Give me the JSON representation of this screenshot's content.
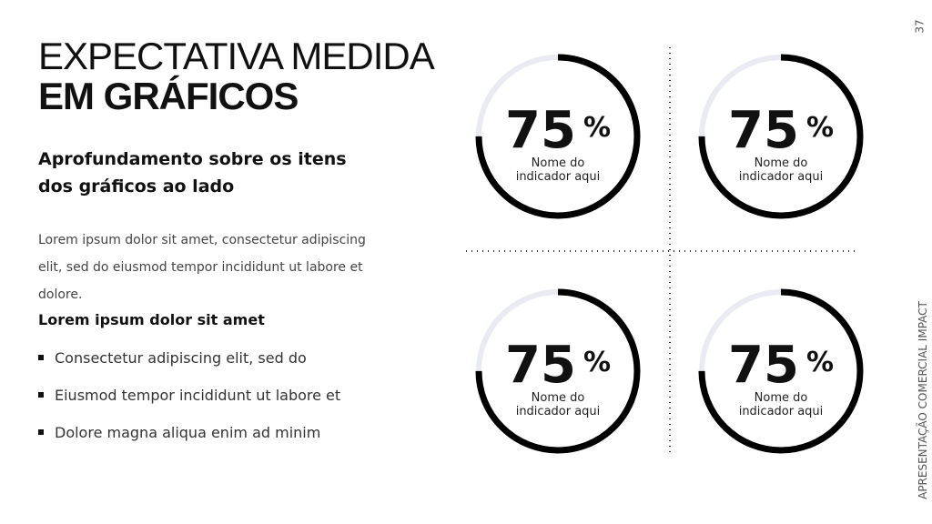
{
  "header": {
    "title_light": "EXPECTATIVA MEDIDA",
    "title_bold": "EM GRÁFICOS",
    "subtitle": "Aprofundamento sobre os itens dos gráficos ao lado"
  },
  "body": {
    "paragraph": "Lorem ipsum dolor sit amet, consectetur adipiscing elit, sed do eiusmod tempor incididunt ut labore et dolore.",
    "list_title": "Lorem ipsum dolor sit amet",
    "bullets": [
      "Consectetur adipiscing elit, sed do",
      "Eiusmod tempor incididunt ut labore et",
      "Dolore magna aliqua enim ad minim"
    ]
  },
  "gauges": [
    {
      "value": 75,
      "unit": "%",
      "label_lines": [
        "Nome do",
        "indicador aqui"
      ]
    },
    {
      "value": 75,
      "unit": "%",
      "label_lines": [
        "Nome do",
        "indicador aqui"
      ]
    },
    {
      "value": 75,
      "unit": "%",
      "label_lines": [
        "Nome do",
        "indicador aqui"
      ]
    },
    {
      "value": 75,
      "unit": "%",
      "label_lines": [
        "Nome do",
        "indicador aqui"
      ]
    }
  ],
  "page_number": "37",
  "side_label": "APRESENTAÇÃO COMERCIAL IMPACT"
}
